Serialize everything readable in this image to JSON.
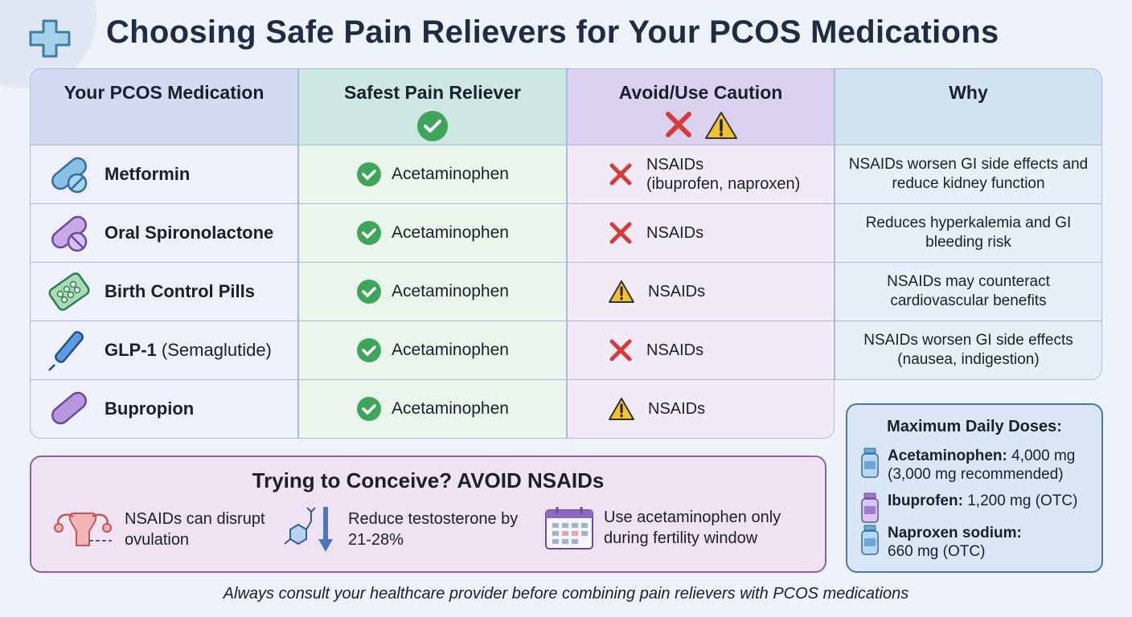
{
  "title": "Choosing Safe Pain Relievers for Your PCOS Medications",
  "table": {
    "headers": [
      "Your PCOS Medication",
      "Safest Pain Reliever",
      "Avoid/Use Caution",
      "Why"
    ],
    "rows": [
      {
        "medication": "Metformin",
        "medication_note": "",
        "safest": "Acetaminophen",
        "avoid_icon": "x-icon",
        "avoid": "NSAIDs",
        "avoid_note": "(ibuprofen, naproxen)",
        "why": "NSAIDs worsen GI side effects and reduce kidney function"
      },
      {
        "medication": "Oral Spironolactone",
        "medication_note": "",
        "safest": "Acetaminophen",
        "avoid_icon": "x-icon",
        "avoid": "NSAIDs",
        "avoid_note": "",
        "why": "Reduces hyperkalemia and GI bleeding risk"
      },
      {
        "medication": "Birth Control Pills",
        "medication_note": "",
        "safest": "Acetaminophen",
        "avoid_icon": "warning-icon",
        "avoid": "NSAIDs",
        "avoid_note": "",
        "why": "NSAIDs may counteract cardiovascular benefits"
      },
      {
        "medication": "GLP-1",
        "medication_note": "(Semaglutide)",
        "safest": "Acetaminophen",
        "avoid_icon": "x-icon",
        "avoid": "NSAIDs",
        "avoid_note": "",
        "why": "NSAIDs worsen GI side effects (nausea, indigestion)"
      },
      {
        "medication": "Bupropion",
        "medication_note": "",
        "safest": "Acetaminophen",
        "avoid_icon": "warning-icon",
        "avoid": "NSAIDs",
        "avoid_note": ""
      }
    ]
  },
  "conceive": {
    "title": "Trying to Conceive? AVOID NSAIDs",
    "items": [
      "NSAIDs can disrupt ovulation",
      "Reduce testosterone by 21-28%",
      "Use acetaminophen only during fertility window"
    ]
  },
  "doses": {
    "title": "Maximum Daily Doses:",
    "items": [
      {
        "name": "Acetaminophen:",
        "value": "4,000 mg",
        "note": "(3,000 mg recommended)"
      },
      {
        "name": "Ibuprofen:",
        "value": "1,200 mg (OTC)",
        "note": ""
      },
      {
        "name": "Naproxen sodium:",
        "value": "",
        "note": "660 mg (OTC)"
      }
    ]
  },
  "footer": "Always consult your healthcare provider before combining pain relievers with PCOS medications",
  "colors": {
    "safe": "#3fa55a",
    "avoid": "#d83a3a",
    "caution": "#f2c230",
    "title": "#1f2d44"
  }
}
